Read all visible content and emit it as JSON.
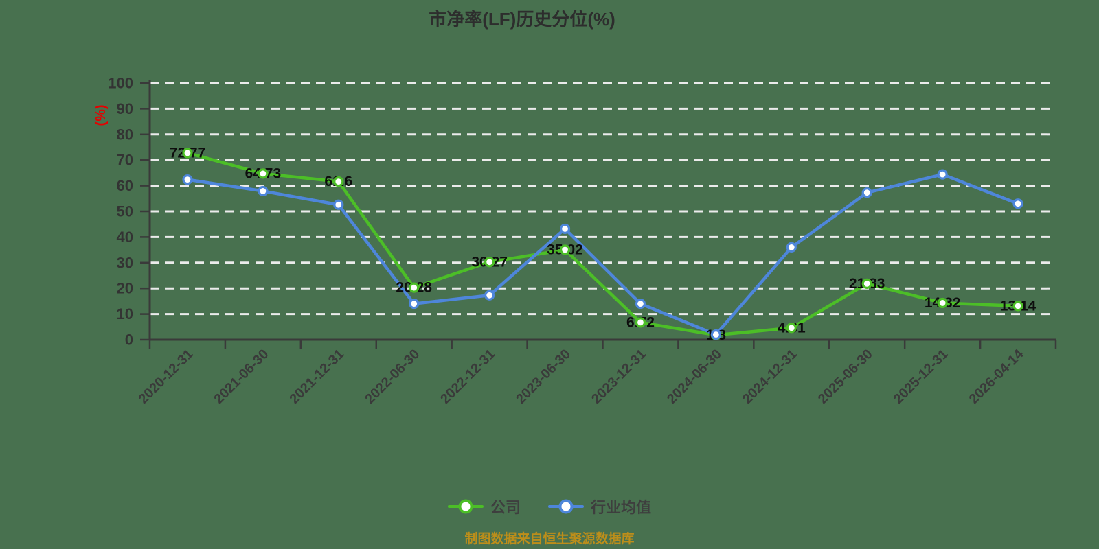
{
  "page": {
    "background_color": "#48714f",
    "source_note": "制图数据来自恒生聚源数据库"
  },
  "chart_data": {
    "type": "line",
    "title": "市净率(LF)历史分位(%)",
    "y_axis_label": "(%)",
    "y_axis_label_color": "#e60000",
    "ylim": [
      0,
      100
    ],
    "y_tick_interval": 10,
    "grid": true,
    "grid_color": "#ebebeb",
    "axis_color": "#3a3a3a",
    "legend_position": "bottom",
    "categories": [
      "2020-12-31",
      "2021-06-30",
      "2021-12-31",
      "2022-06-30",
      "2022-12-31",
      "2023-06-30",
      "2023-12-31",
      "2024-06-30",
      "2024-12-31",
      "2025-06-30",
      "2025-12-31",
      "2026-04-14"
    ],
    "series": [
      {
        "name": "公司",
        "color": "#4cbe27",
        "marker": "circle-white-fill",
        "data_labels_shown": true,
        "values": [
          72.77,
          64.73,
          61.6,
          20.28,
          30.27,
          35.02,
          6.72,
          1.8,
          4.61,
          21.83,
          14.32,
          13.14
        ]
      },
      {
        "name": "行业均值",
        "color": "#4e86da",
        "marker": "circle-white-fill",
        "data_labels_shown": false,
        "values": [
          62.4,
          57.9,
          52.6,
          14,
          17.3,
          43.2,
          14,
          2,
          36,
          57.3,
          64.4,
          53
        ]
      }
    ]
  }
}
